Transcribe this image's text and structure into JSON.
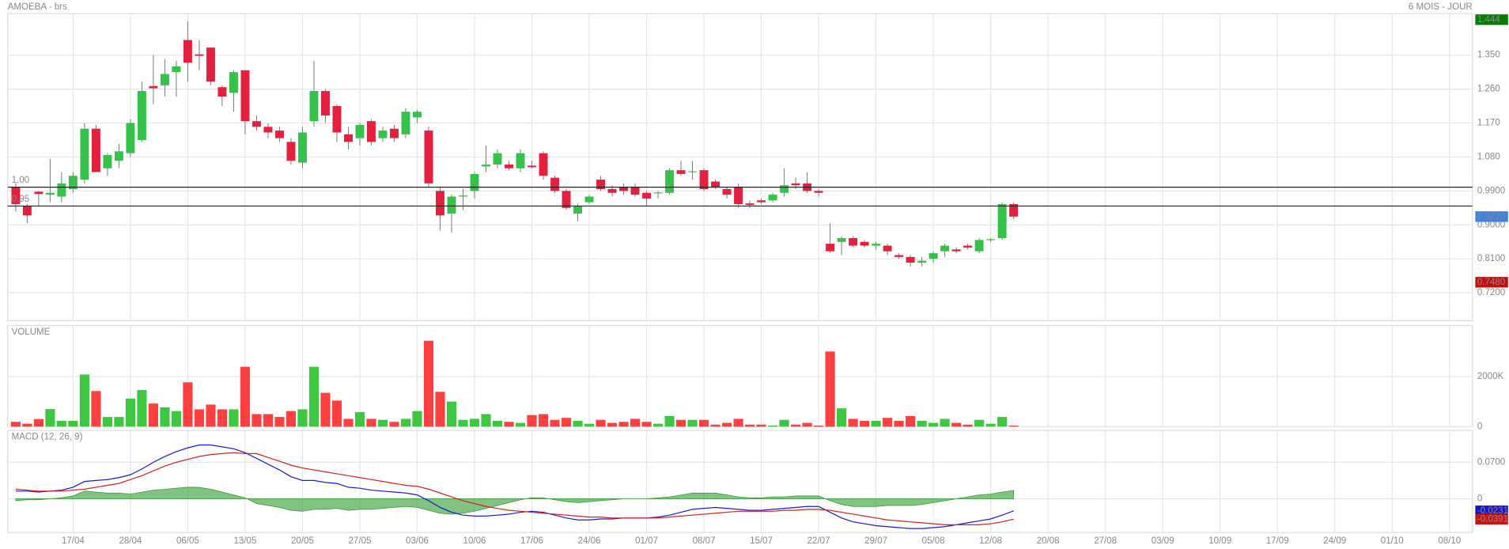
{
  "chart_data": [
    {
      "type": "candlestick",
      "title": "AMOEBA - brs",
      "subtitle": "6 MOIS - JOUR",
      "open": [
        1.0,
        0.95,
        0.988,
        0.98,
        0.975,
        0.995,
        1.02,
        1.155,
        1.05,
        1.07,
        1.09,
        1.125,
        1.268,
        1.27,
        1.305,
        1.39,
        1.352,
        1.37,
        1.265,
        1.25,
        1.31,
        1.175,
        1.16,
        1.15,
        1.12,
        1.065,
        1.175,
        1.255,
        1.215,
        1.14,
        1.13,
        1.175,
        1.13,
        1.155,
        1.14,
        1.185,
        1.15,
        0.99,
        0.93,
        0.975,
        0.99,
        1.055,
        1.06,
        1.06,
        1.05,
        1.057,
        1.09,
        1.025,
        0.99,
        0.93,
        0.96,
        1.02,
        0.995,
        1.0,
        1.0,
        0.985,
        0.984,
        0.985,
        1.045,
        1.04,
        1.045,
        1.015,
        0.995,
        1.0,
        0.957,
        0.965,
        0.965,
        0.985,
        1.01,
        1.01,
        0.99,
        0.85,
        0.855,
        0.865,
        0.855,
        0.845,
        0.845,
        0.82,
        0.815,
        0.8,
        0.81,
        0.83,
        0.835,
        0.845,
        0.83,
        0.86,
        0.865,
        0.955
      ],
      "high": [
        1.01,
        0.955,
        0.99,
        1.075,
        1.04,
        1.04,
        1.17,
        1.165,
        1.09,
        1.115,
        1.18,
        1.28,
        1.35,
        1.34,
        1.335,
        1.44,
        1.39,
        1.37,
        1.27,
        1.31,
        1.31,
        1.19,
        1.17,
        1.16,
        1.13,
        1.16,
        1.335,
        1.26,
        1.22,
        1.16,
        1.17,
        1.18,
        1.16,
        1.165,
        1.21,
        1.205,
        1.16,
        1.0,
        0.98,
        0.995,
        1.04,
        1.11,
        1.1,
        1.07,
        1.1,
        1.07,
        1.095,
        1.03,
        0.995,
        0.955,
        0.98,
        1.03,
        1.005,
        1.01,
        1.01,
        0.99,
        0.99,
        1.05,
        1.07,
        1.07,
        1.05,
        1.02,
        1.0,
        1.01,
        0.965,
        0.97,
        0.985,
        1.05,
        1.025,
        1.04,
        0.995,
        0.905,
        0.87,
        0.87,
        0.86,
        0.855,
        0.85,
        0.825,
        0.82,
        0.815,
        0.83,
        0.85,
        0.84,
        0.85,
        0.865,
        0.865,
        0.96,
        0.96
      ],
      "low": [
        0.935,
        0.905,
        0.95,
        0.96,
        0.96,
        0.985,
        1.01,
        1.04,
        1.03,
        1.05,
        1.08,
        1.12,
        1.22,
        1.24,
        1.24,
        1.28,
        1.31,
        1.27,
        1.215,
        1.2,
        1.14,
        1.15,
        1.13,
        1.12,
        1.06,
        1.05,
        1.16,
        1.17,
        1.12,
        1.1,
        1.11,
        1.11,
        1.12,
        1.12,
        1.13,
        1.17,
        1.0,
        0.885,
        0.88,
        0.94,
        0.97,
        1.04,
        1.05,
        1.045,
        1.04,
        1.05,
        1.02,
        0.985,
        0.94,
        0.91,
        0.955,
        0.99,
        0.975,
        0.98,
        0.975,
        0.95,
        0.97,
        0.98,
        1.03,
        1.02,
        0.99,
        0.995,
        0.97,
        0.945,
        0.945,
        0.955,
        0.96,
        0.975,
        0.995,
        0.985,
        0.975,
        0.825,
        0.82,
        0.84,
        0.84,
        0.835,
        0.82,
        0.81,
        0.79,
        0.79,
        0.8,
        0.815,
        0.825,
        0.835,
        0.825,
        0.855,
        0.86,
        0.915
      ],
      "close": [
        0.955,
        0.925,
        0.982,
        0.985,
        1.01,
        1.03,
        1.155,
        1.04,
        1.085,
        1.095,
        1.17,
        1.255,
        1.262,
        1.3,
        1.32,
        1.33,
        1.348,
        1.28,
        1.24,
        1.305,
        1.175,
        1.16,
        1.145,
        1.13,
        1.07,
        1.145,
        1.255,
        1.19,
        1.145,
        1.12,
        1.165,
        1.12,
        1.15,
        1.13,
        1.2,
        1.2,
        1.01,
        0.925,
        0.975,
        0.978,
        1.035,
        1.06,
        1.09,
        1.05,
        1.09,
        1.053,
        1.03,
        0.99,
        0.945,
        0.95,
        0.975,
        0.995,
        0.985,
        0.99,
        0.98,
        0.97,
        0.986,
        1.045,
        1.035,
        1.042,
        0.995,
        1.0,
        0.98,
        0.955,
        0.953,
        0.96,
        0.98,
        1.005,
        1.005,
        0.99,
        0.985,
        0.83,
        0.865,
        0.845,
        0.845,
        0.85,
        0.83,
        0.815,
        0.8,
        0.805,
        0.825,
        0.845,
        0.83,
        0.84,
        0.86,
        0.862,
        0.955,
        0.922
      ],
      "up_color": "#35c24a",
      "down_color": "#e5203f",
      "xlim": [
        -0.7,
        127
      ],
      "ylim": [
        0.646,
        1.46
      ],
      "yticks": [
        {
          "value": 1.35,
          "label": "1.350"
        },
        {
          "value": 1.26,
          "label": "1.260"
        },
        {
          "value": 1.17,
          "label": "1.170"
        },
        {
          "value": 1.08,
          "label": "1.080"
        },
        {
          "value": 0.99,
          "label": "0.9900"
        },
        {
          "value": 0.9,
          "label": "0.9000"
        },
        {
          "value": 0.81,
          "label": "0.8100"
        },
        {
          "value": 0.72,
          "label": "0.7200"
        }
      ],
      "grid": true,
      "hlines": [
        {
          "value": 1,
          "label": "1.00"
        },
        {
          "value": 0.95,
          "label": "0.95"
        }
      ],
      "price_tags": [
        {
          "value": 1.444,
          "label": "1.444",
          "color": "#0a7a0a"
        },
        {
          "value": 0.922,
          "label": "0.9220",
          "color": "#3b82e8"
        },
        {
          "value": 0.748,
          "label": "0.7480",
          "color": "#c01010"
        }
      ]
    },
    {
      "type": "bar",
      "title": "VOLUME",
      "values": [
        190,
        115,
        300,
        700,
        230,
        230,
        2080,
        1420,
        385,
        385,
        1120,
        1460,
        920,
        770,
        620,
        1770,
        690,
        880,
        690,
        690,
        2390,
        500,
        500,
        385,
        620,
        690,
        2390,
        1350,
        1040,
        310,
        580,
        310,
        270,
        190,
        310,
        620,
        3430,
        1390,
        1000,
        270,
        310,
        500,
        230,
        190,
        150,
        460,
        500,
        270,
        350,
        230,
        115,
        270,
        150,
        190,
        310,
        190,
        115,
        420,
        270,
        270,
        270,
        80,
        150,
        310,
        80,
        80,
        40,
        270,
        80,
        150,
        40,
        3000,
        730,
        310,
        230,
        230,
        350,
        230,
        420,
        230,
        150,
        310,
        150,
        80,
        270,
        115,
        385,
        40
      ],
      "up_color": "#3ec842",
      "down_color": "#ff4040",
      "title_color": "#3ab83a",
      "xlim": [
        -0.7,
        127
      ],
      "ylim": [
        0,
        4038
      ],
      "yticks": [
        0,
        {
          "value": 2000,
          "label": "2000K"
        }
      ],
      "grid": true
    },
    {
      "type": "line",
      "title": "MACD (12, 26, 9)",
      "title_color": "#1b1bb0",
      "series": [
        {
          "color": "#1b1bd0",
          "values": [
            0.0147,
            0.0147,
            0.0129,
            0.0147,
            0.0166,
            0.0221,
            0.0331,
            0.035,
            0.0368,
            0.0405,
            0.046,
            0.057,
            0.0699,
            0.0809,
            0.0902,
            0.0975,
            0.103,
            0.103,
            0.0994,
            0.0957,
            0.0883,
            0.0773,
            0.0662,
            0.0552,
            0.0423,
            0.035,
            0.035,
            0.0313,
            0.0294,
            0.0221,
            0.0202,
            0.0166,
            0.0147,
            0.0129,
            0.011,
            0.0074,
            -0.0037,
            -0.0166,
            -0.0258,
            -0.0313,
            -0.0331,
            -0.0331,
            -0.0313,
            -0.0294,
            -0.0258,
            -0.0239,
            -0.0258,
            -0.0313,
            -0.0368,
            -0.0405,
            -0.0405,
            -0.0386,
            -0.0386,
            -0.0368,
            -0.0368,
            -0.0368,
            -0.035,
            -0.0313,
            -0.0258,
            -0.0202,
            -0.0184,
            -0.0166,
            -0.0184,
            -0.0202,
            -0.0221,
            -0.0221,
            -0.0202,
            -0.0184,
            -0.0166,
            -0.0147,
            -0.0147,
            -0.0258,
            -0.0368,
            -0.0442,
            -0.0478,
            -0.0515,
            -0.0534,
            -0.0552,
            -0.057,
            -0.057,
            -0.0552,
            -0.0534,
            -0.0497,
            -0.046,
            -0.0423,
            -0.0386,
            -0.0313,
            -0.0231
          ]
        },
        {
          "color": "#d42020",
          "values": [
            0.0184,
            0.0166,
            0.0147,
            0.0147,
            0.0147,
            0.0166,
            0.0184,
            0.0221,
            0.0258,
            0.0294,
            0.0368,
            0.0442,
            0.0534,
            0.0626,
            0.0699,
            0.0754,
            0.081,
            0.0846,
            0.0865,
            0.0883,
            0.0865,
            0.0865,
            0.0791,
            0.0718,
            0.0644,
            0.0589,
            0.0552,
            0.0515,
            0.0478,
            0.0442,
            0.0405,
            0.0368,
            0.0331,
            0.0294,
            0.0258,
            0.0239,
            0.0184,
            0.011,
            0.0037,
            -0.0037,
            -0.0092,
            -0.0147,
            -0.0184,
            -0.0221,
            -0.0239,
            -0.0258,
            -0.0276,
            -0.0294,
            -0.0313,
            -0.0331,
            -0.035,
            -0.035,
            -0.0368,
            -0.0368,
            -0.0368,
            -0.0368,
            -0.0368,
            -0.035,
            -0.0331,
            -0.0313,
            -0.0294,
            -0.0276,
            -0.0258,
            -0.0239,
            -0.0239,
            -0.0239,
            -0.0239,
            -0.0221,
            -0.0221,
            -0.0202,
            -0.0202,
            -0.0221,
            -0.0258,
            -0.0294,
            -0.0331,
            -0.0368,
            -0.0405,
            -0.0423,
            -0.0442,
            -0.046,
            -0.0478,
            -0.0497,
            -0.0497,
            -0.0497,
            -0.0497,
            -0.0478,
            -0.0442,
            -0.0391
          ]
        }
      ],
      "histogram": {
        "color": "#2e9a2e",
        "values": [
          -0.0037,
          -0.0019,
          -0.0018,
          0,
          0.0019,
          0.0055,
          0.0147,
          0.0129,
          0.011,
          0.0111,
          0.0092,
          0.0128,
          0.0165,
          0.0183,
          0.0203,
          0.0221,
          0.022,
          0.0184,
          0.0129,
          0.0074,
          0.0018,
          -0.0092,
          -0.0129,
          -0.0166,
          -0.0221,
          -0.0239,
          -0.0202,
          -0.0202,
          -0.0184,
          -0.0221,
          -0.0203,
          -0.0202,
          -0.0184,
          -0.0165,
          -0.0148,
          -0.0165,
          -0.0221,
          -0.0276,
          -0.0295,
          -0.0276,
          -0.0239,
          -0.0184,
          -0.0129,
          -0.0073,
          -0.0019,
          0.0019,
          0.0018,
          -0.0019,
          -0.0055,
          -0.0074,
          -0.0055,
          -0.0036,
          -0.0018,
          0,
          0,
          0,
          0.0018,
          0.0037,
          0.0073,
          0.0111,
          0.011,
          0.011,
          0.0074,
          0.0037,
          0.0018,
          0.0018,
          0.0037,
          0.0037,
          0.0055,
          0.0055,
          0.0055,
          -0.0037,
          -0.011,
          -0.0148,
          -0.0147,
          -0.0147,
          -0.0129,
          -0.0129,
          -0.0128,
          -0.011,
          -0.0074,
          -0.0037,
          0,
          0.0037,
          0.0074,
          0.0092,
          0.0129,
          0.016
        ]
      },
      "xlim": [
        -0.7,
        127
      ],
      "xticks": [
        {
          "value": 5,
          "label": "17/04"
        },
        {
          "value": 10,
          "label": "28/04"
        },
        {
          "value": 15,
          "label": "06/05"
        },
        {
          "value": 20,
          "label": "13/05"
        },
        {
          "value": 25,
          "label": "20/05"
        },
        {
          "value": 30,
          "label": "27/05"
        },
        {
          "value": 35,
          "label": "03/06"
        },
        {
          "value": 40,
          "label": "10/06"
        },
        {
          "value": 45,
          "label": "17/06"
        },
        {
          "value": 50,
          "label": "24/06"
        },
        {
          "value": 55,
          "label": "01/07"
        },
        {
          "value": 60,
          "label": "08/07"
        },
        {
          "value": 65,
          "label": "15/07"
        },
        {
          "value": 70,
          "label": "22/07"
        },
        {
          "value": 75,
          "label": "29/07"
        },
        {
          "value": 80,
          "label": "05/08"
        },
        {
          "value": 85,
          "label": "12/08"
        },
        {
          "value": 90,
          "label": "20/08"
        },
        {
          "value": 95,
          "label": "27/08"
        },
        {
          "value": 100,
          "label": "03/09"
        },
        {
          "value": 105,
          "label": "10/09"
        },
        {
          "value": 110,
          "label": "17/09"
        },
        {
          "value": 115,
          "label": "24/09"
        },
        {
          "value": 120,
          "label": "01/10"
        },
        {
          "value": 125,
          "label": "08/10"
        }
      ],
      "ylim": [
        -0.0645,
        0.1308
      ],
      "yticks": [
        0,
        {
          "value": 0.07,
          "label": "0.0700"
        }
      ],
      "grid": true,
      "value_tags": [
        {
          "value": -0.0231,
          "label": "-0.0231",
          "color": "#1414c8"
        },
        {
          "value": -0.0391,
          "label": "-0.0391",
          "color": "#d01010"
        }
      ]
    }
  ]
}
